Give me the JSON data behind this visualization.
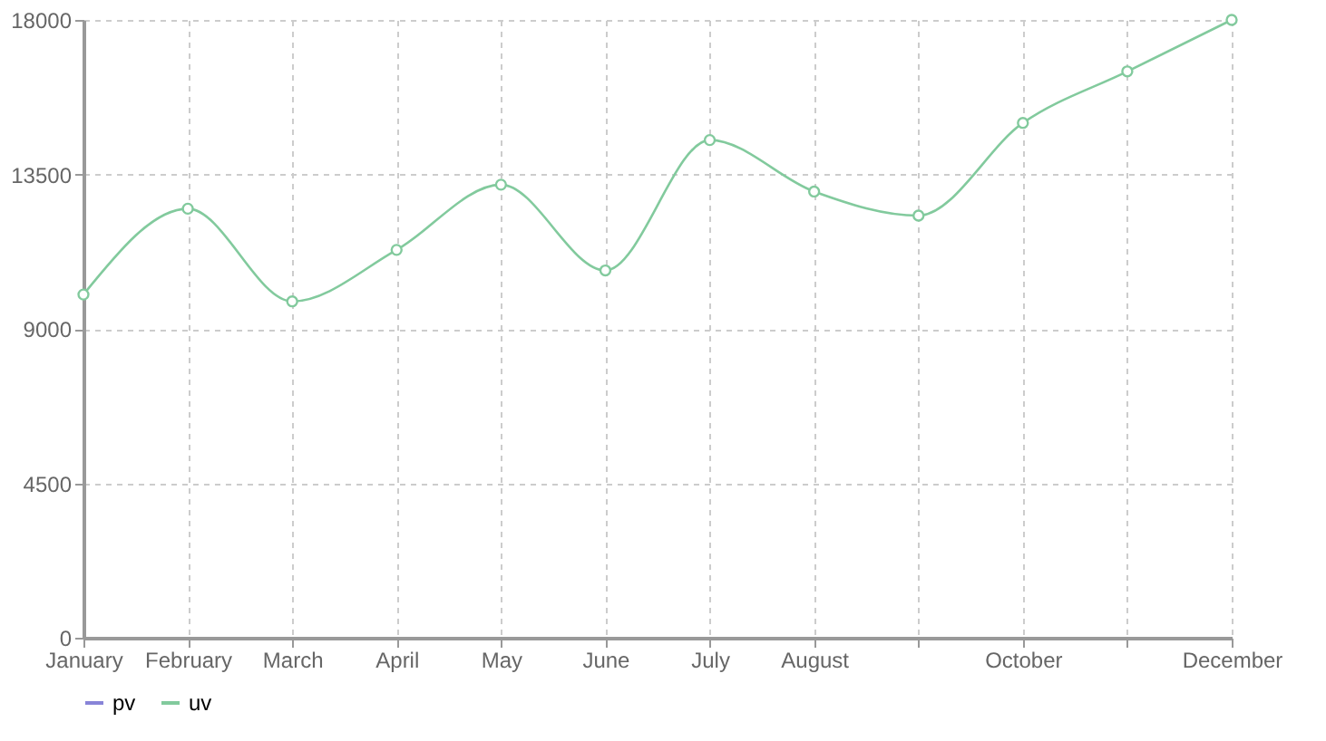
{
  "chart_data": {
    "type": "line",
    "categories": [
      "January",
      "February",
      "March",
      "April",
      "May",
      "June",
      "July",
      "August",
      null,
      "October",
      null,
      "December"
    ],
    "series": [
      {
        "name": "pv",
        "color": "#8884d8",
        "values": [
          null,
          null,
          null,
          null,
          null,
          null,
          null,
          null,
          null,
          null,
          null,
          null
        ]
      },
      {
        "name": "uv",
        "color": "#82ca9d",
        "values": [
          10000,
          12500,
          9800,
          11300,
          13200,
          10700,
          14500,
          13000,
          12300,
          15000,
          16500,
          18000
        ]
      }
    ],
    "ylim": [
      0,
      18000
    ],
    "yticks": [
      0,
      4500,
      9000,
      13500,
      18000
    ],
    "grid": true,
    "legend": "bottom",
    "marker": "circle",
    "line_style": "solid"
  }
}
